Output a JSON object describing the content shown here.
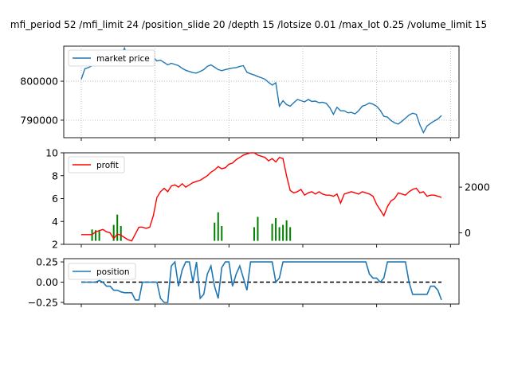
{
  "title": "mfi_period 52 /mfi_limit 24 /position_slide 20 /depth 15 /lotsize 0.01 /max_lot 0.25 /volume_limit 15",
  "colors": {
    "price": "#1f77b4",
    "profit": "#ff0000",
    "volume": "#008000",
    "position": "#1f77b4",
    "zero": "#000000"
  },
  "chart_data": [
    {
      "type": "line",
      "grid": true,
      "legend": "upper-left",
      "xlim": [
        0,
        100
      ],
      "ylim": [
        785500,
        809000
      ],
      "yticks": [
        790000,
        800000
      ],
      "ytick_labels": [
        "790000",
        "800000"
      ],
      "series": [
        {
          "name": "market price",
          "x": [
            0,
            1,
            2,
            3,
            4,
            5,
            6,
            7,
            8,
            9,
            10,
            11,
            12,
            13,
            14,
            15,
            16,
            17,
            18,
            19,
            20,
            21,
            22,
            23,
            24,
            25,
            26,
            27,
            28,
            29,
            30,
            31,
            32,
            33,
            34,
            35,
            36,
            37,
            38,
            39,
            40,
            41,
            42,
            43,
            44,
            45,
            46,
            47,
            48,
            49,
            50,
            51,
            52,
            53,
            54,
            55,
            56,
            57,
            58,
            59,
            60,
            61,
            62,
            63,
            64,
            65,
            66,
            67,
            68,
            69,
            70,
            71,
            72,
            73,
            74,
            75,
            76,
            77,
            78,
            79,
            80,
            81,
            82,
            83,
            84,
            85,
            86,
            87,
            88,
            89,
            90,
            91,
            92,
            93,
            94,
            95,
            96,
            97,
            98,
            99,
            100
          ],
          "values": [
            800500,
            803200,
            803500,
            804000,
            804300,
            804100,
            804600,
            805200,
            804300,
            804000,
            805800,
            806500,
            808500,
            806000,
            805000,
            804000,
            805500,
            805400,
            806000,
            806800,
            806200,
            805200,
            805400,
            804800,
            804200,
            804600,
            804300,
            804000,
            803300,
            802800,
            802500,
            802200,
            802100,
            802500,
            803000,
            803800,
            804200,
            803600,
            803000,
            802700,
            803000,
            803200,
            803400,
            803500,
            803800,
            804000,
            802300,
            801900,
            801600,
            801200,
            800900,
            800500,
            799700,
            799000,
            799600,
            793600,
            795000,
            794000,
            793600,
            794500,
            795300,
            795000,
            794700,
            795300,
            794800,
            794900,
            794500,
            794600,
            794300,
            793200,
            791500,
            793300,
            792400,
            792400,
            791900,
            792000,
            791600,
            792400,
            793600,
            793900,
            794400,
            794100,
            793600,
            792500,
            791000,
            790800,
            789900,
            789300,
            789000,
            789700,
            790500,
            791300,
            791800,
            791500,
            788800,
            786800,
            788500,
            789200,
            789800,
            790300,
            791200
          ]
        }
      ]
    },
    {
      "type": "line",
      "grid": false,
      "legend": "upper-left",
      "xlim": [
        0,
        100
      ],
      "ylim": [
        2,
        10
      ],
      "yticks": [
        2,
        4,
        6,
        8,
        10
      ],
      "ytick_labels": [
        "2",
        "4",
        "6",
        "8",
        "10"
      ],
      "ylim_right": [
        -500,
        3500
      ],
      "yticks_right": [
        0,
        2000
      ],
      "ytick_labels_right": [
        "0",
        "2000"
      ],
      "series": [
        {
          "name": "profit",
          "x": [
            0,
            3,
            4,
            5,
            6,
            7,
            8,
            9,
            10,
            11,
            12,
            13,
            14,
            15,
            16,
            17,
            18,
            19,
            20,
            21,
            22,
            23,
            24,
            25,
            26,
            27,
            28,
            29,
            30,
            31,
            32,
            33,
            34,
            35,
            36,
            37,
            38,
            39,
            40,
            41,
            42,
            43,
            44,
            45,
            46,
            47,
            48,
            49,
            50,
            51,
            52,
            53,
            54,
            55,
            56,
            57,
            58,
            59,
            60,
            61,
            62,
            63,
            64,
            65,
            66,
            67,
            68,
            69,
            70,
            71,
            72,
            73,
            74,
            75,
            76,
            77,
            78,
            79,
            80,
            81,
            82,
            83,
            84,
            85,
            86,
            87,
            88,
            89,
            90,
            91,
            92,
            93,
            94,
            95,
            96,
            97,
            98,
            99,
            100
          ],
          "values": [
            2.85,
            2.85,
            3.1,
            3.2,
            3.3,
            3.1,
            3.0,
            2.5,
            2.9,
            2.8,
            2.6,
            2.4,
            2.3,
            2.9,
            3.5,
            3.5,
            3.4,
            3.5,
            4.5,
            6.1,
            6.6,
            6.9,
            6.6,
            7.1,
            7.2,
            7.0,
            7.3,
            7.0,
            7.2,
            7.4,
            7.5,
            7.6,
            7.8,
            8.0,
            8.3,
            8.5,
            8.8,
            8.6,
            8.7,
            9.0,
            9.1,
            9.4,
            9.6,
            9.8,
            9.9,
            10.0,
            10.0,
            9.8,
            9.7,
            9.6,
            9.3,
            9.5,
            9.2,
            9.6,
            9.5,
            8.0,
            6.7,
            6.5,
            6.6,
            6.8,
            6.3,
            6.5,
            6.6,
            6.4,
            6.6,
            6.4,
            6.3,
            6.3,
            6.2,
            6.4,
            5.6,
            6.4,
            6.5,
            6.6,
            6.5,
            6.4,
            6.6,
            6.5,
            6.4,
            6.2,
            5.5,
            5.0,
            4.5,
            5.3,
            5.8,
            6.0,
            6.5,
            6.4,
            6.3,
            6.6,
            6.8,
            6.9,
            6.5,
            6.6,
            6.2,
            6.3,
            6.3,
            6.2,
            6.1
          ],
          "axis": "left"
        },
        {
          "x": [
            3,
            4,
            5,
            9,
            10,
            11,
            37,
            38,
            39,
            48,
            49,
            53,
            54,
            55,
            56,
            57,
            58
          ],
          "values": [
            150,
            120,
            80,
            350,
            800,
            300,
            450,
            900,
            300,
            250,
            700,
            400,
            650,
            250,
            350,
            550,
            250
          ],
          "axis": "right",
          "style": "spikes"
        }
      ]
    },
    {
      "type": "line",
      "grid": false,
      "legend": "upper-left",
      "xlim": [
        0,
        100
      ],
      "ylim": [
        -0.27,
        0.29
      ],
      "yticks": [
        -0.25,
        0.0,
        0.25
      ],
      "ytick_labels": [
        "−0.25",
        "0.00",
        "0.25"
      ],
      "series": [
        {
          "name": "position",
          "x": [
            0,
            4,
            5,
            6,
            7,
            8,
            9,
            10,
            11,
            12,
            13,
            14,
            15,
            16,
            17,
            18,
            19,
            20,
            21,
            22,
            23,
            24,
            25,
            26,
            27,
            28,
            29,
            30,
            31,
            32,
            33,
            34,
            35,
            36,
            37,
            38,
            39,
            40,
            41,
            42,
            43,
            44,
            45,
            46,
            47,
            48,
            49,
            50,
            51,
            52,
            53,
            54,
            55,
            56,
            57,
            58,
            59,
            60,
            61,
            62,
            63,
            64,
            65,
            66,
            67,
            68,
            69,
            70,
            71,
            72,
            73,
            74,
            75,
            76,
            77,
            78,
            79,
            80,
            81,
            82,
            83,
            84,
            85,
            86,
            87,
            88,
            89,
            90,
            91,
            92,
            93,
            94,
            95,
            96,
            97,
            98,
            99,
            100
          ],
          "values": [
            0.0,
            0.0,
            0.02,
            0.0,
            -0.05,
            -0.05,
            -0.1,
            -0.1,
            -0.12,
            -0.13,
            -0.13,
            -0.13,
            -0.22,
            -0.22,
            0.0,
            0.0,
            0.0,
            0.0,
            0.0,
            -0.2,
            -0.25,
            -0.25,
            0.2,
            0.25,
            -0.05,
            0.15,
            0.25,
            0.25,
            0.0,
            0.25,
            -0.2,
            -0.15,
            0.1,
            0.2,
            -0.05,
            -0.2,
            0.18,
            0.25,
            0.25,
            -0.05,
            0.1,
            0.2,
            0.05,
            -0.1,
            0.25,
            0.25,
            0.25,
            0.25,
            0.25,
            0.25,
            0.25,
            0.0,
            0.05,
            0.25,
            0.25,
            0.25,
            0.25,
            0.25,
            0.25,
            0.25,
            0.25,
            0.25,
            0.25,
            0.25,
            0.25,
            0.25,
            0.25,
            0.25,
            0.25,
            0.25,
            0.25,
            0.25,
            0.25,
            0.25,
            0.25,
            0.25,
            0.25,
            0.1,
            0.05,
            0.05,
            0.0,
            0.05,
            0.25,
            0.25,
            0.25,
            0.25,
            0.25,
            0.25,
            0.0,
            -0.15,
            -0.15,
            -0.15,
            -0.15,
            -0.15,
            -0.05,
            -0.05,
            -0.1,
            -0.22
          ]
        },
        {
          "x": [
            0,
            100
          ],
          "values": [
            0,
            0
          ],
          "style": "dashed"
        }
      ]
    }
  ]
}
